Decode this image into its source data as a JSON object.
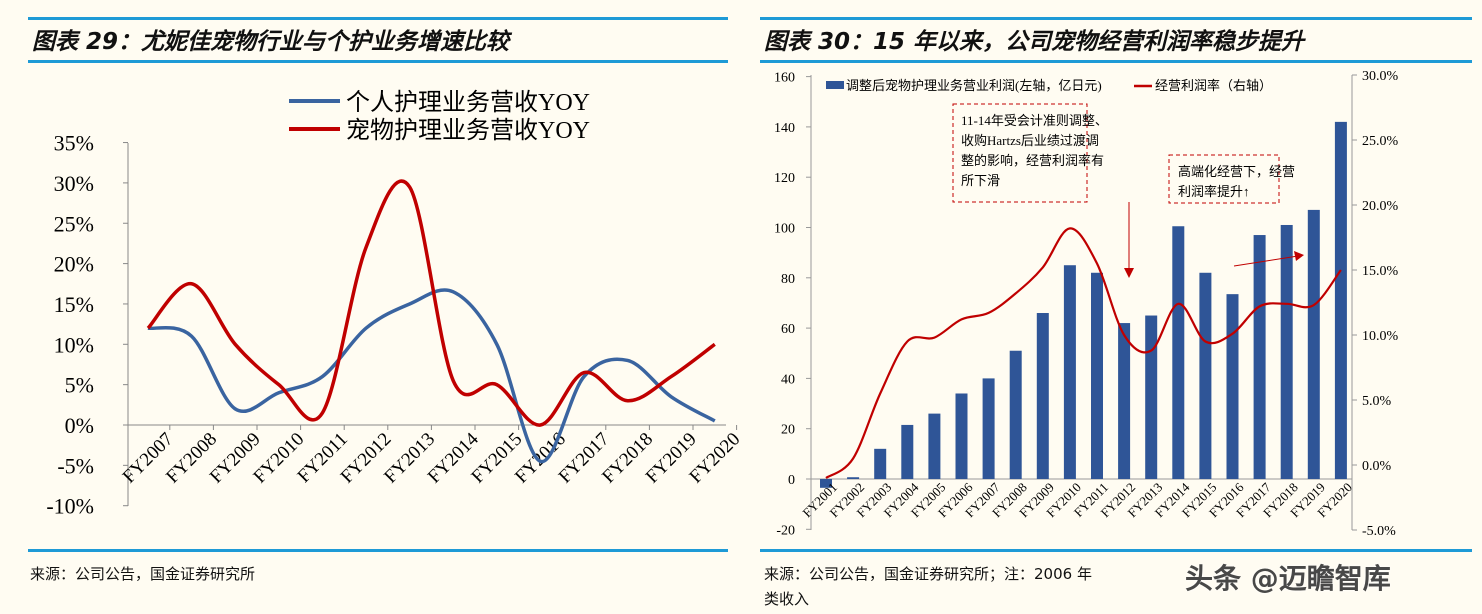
{
  "left": {
    "title": "图表 29：尤妮佳宠物行业与个护业务增速比较",
    "source": "来源：公司公告，国金证券研究所"
  },
  "right": {
    "title": "图表 30：15 年以来，公司宠物经营利润率稳步提升",
    "source_line1": "来源：公司公告，国金证券研究所；注：2006 年",
    "source_line2": "类收入",
    "annotation1": [
      "11-14年受会计准则调整、",
      "收购Hartzs后业绩过渡调",
      "整的影响，经营利润率有",
      "所下滑"
    ],
    "annotation2": [
      "高端化经营下，经营",
      "利润率提升↑"
    ]
  },
  "watermark": "头条 @迈瞻智库",
  "chart_data": [
    {
      "type": "line",
      "categories": [
        "FY2007",
        "FY2008",
        "FY2009",
        "FY2010",
        "FY2011",
        "FY2012",
        "FY2013",
        "FY2014",
        "FY2015",
        "FY2016",
        "FY2017",
        "FY2018",
        "FY2019",
        "FY2020"
      ],
      "ylim": [
        -10,
        35
      ],
      "yticks": [
        "35%",
        "30%",
        "25%",
        "20%",
        "15%",
        "10%",
        "5%",
        "0%",
        "-5%",
        "-10%"
      ],
      "legend": "top-center",
      "series": [
        {
          "name": "个人护理业务营收YOY",
          "color": "#3a64a0",
          "values": [
            12,
            11,
            2,
            4,
            6,
            12,
            15,
            16.5,
            10,
            -4.5,
            6,
            8,
            3.5,
            0.5
          ]
        },
        {
          "name": "宠物护理业务营收YOY",
          "color": "#c00000",
          "values": [
            12,
            17.5,
            10,
            5,
            1.5,
            22,
            29.5,
            5.5,
            5,
            0,
            6.5,
            3,
            6,
            10
          ]
        }
      ]
    },
    {
      "type": "bar+line",
      "categories": [
        "FY2001",
        "FY2002",
        "FY2003",
        "FY2004",
        "FY2005",
        "FY2006",
        "FY2007",
        "FY2008",
        "FY2009",
        "FY2010",
        "FY2011",
        "FY2012",
        "FY2013",
        "FY2014",
        "FY2015",
        "FY2016",
        "FY2017",
        "FY2018",
        "FY2019",
        "FY2020"
      ],
      "ylim_left": [
        -20,
        160
      ],
      "yticks_left": [
        "160",
        "140",
        "120",
        "100",
        "80",
        "60",
        "40",
        "20",
        "0",
        "-20"
      ],
      "ylim_right": [
        -5,
        30
      ],
      "yticks_right": [
        "30.0%",
        "25.0%",
        "20.0%",
        "15.0%",
        "10.0%",
        "5.0%",
        "0.0%",
        "-5.0%"
      ],
      "legend": "top",
      "series": [
        {
          "name": "调整后宠物护理业务营业利润(左轴，亿日元)",
          "type": "bar",
          "axis": "left",
          "color": "#2f5597",
          "values": [
            -3.5,
            0.7,
            12,
            21.5,
            26,
            34,
            40,
            51,
            66,
            85,
            82,
            62,
            65,
            100.5,
            82,
            73.5,
            97,
            101,
            107,
            142
          ]
        },
        {
          "name": "经营利润率（右轴）",
          "type": "line",
          "axis": "right",
          "color": "#c00000",
          "values": [
            -1.0,
            0.5,
            5.5,
            9.5,
            9.8,
            11.2,
            11.7,
            13.2,
            15.2,
            18.2,
            15.5,
            10.0,
            8.8,
            12.4,
            9.5,
            10.1,
            12.2,
            12.4,
            12.3,
            15.0
          ]
        }
      ]
    }
  ]
}
